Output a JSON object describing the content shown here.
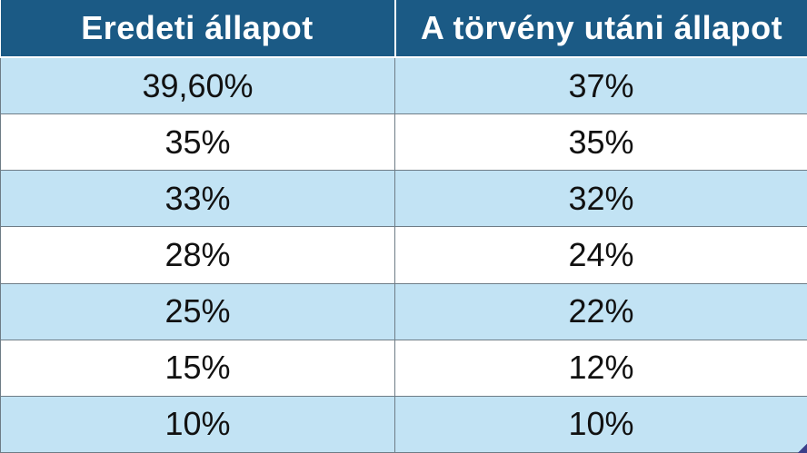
{
  "chart_data": {
    "type": "table",
    "columns": [
      "Eredeti állapot",
      "A törvény utáni állapot"
    ],
    "rows": [
      [
        "39,60%",
        "37%"
      ],
      [
        "35%",
        "35%"
      ],
      [
        "33%",
        "32%"
      ],
      [
        "28%",
        "24%"
      ],
      [
        "25%",
        "22%"
      ],
      [
        "15%",
        "12%"
      ],
      [
        "10%",
        "10%"
      ]
    ],
    "colors": {
      "header_background": "#1b5a85",
      "header_text": "#ffffff",
      "band_row": "#c2e3f4",
      "plain_row": "#ffffff",
      "cell_border": "#6e7c86"
    }
  }
}
